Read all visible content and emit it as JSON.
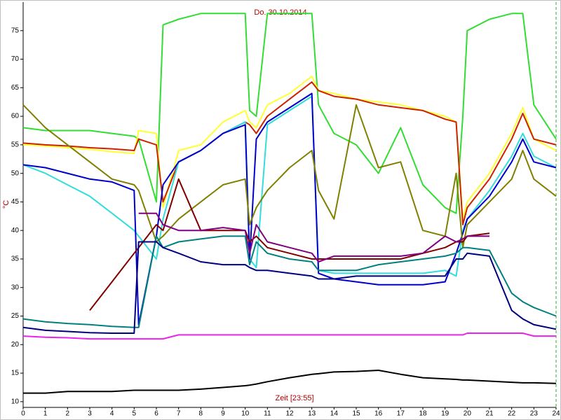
{
  "chart_data": {
    "type": "line",
    "title": "Do. 30.10.2014",
    "x_label": "Zeit [23:55]",
    "y_label": "°C",
    "x": [
      0,
      1,
      2,
      3,
      4,
      5,
      5.2,
      6,
      6.3,
      7,
      8,
      9,
      10,
      10.2,
      10.5,
      11,
      12,
      13,
      13.3,
      14,
      15,
      16,
      17,
      18,
      19,
      19.5,
      19.8,
      20,
      21,
      22,
      22.5,
      23,
      24
    ],
    "xlim": [
      0,
      24
    ],
    "xticks": [
      0,
      1,
      2,
      3,
      4,
      5,
      6,
      7,
      8,
      9,
      10,
      11,
      12,
      13,
      14,
      15,
      16,
      17,
      18,
      19,
      20,
      21,
      22,
      23,
      24
    ],
    "ylim": [
      9,
      80
    ],
    "yticks": [
      10,
      15,
      20,
      25,
      30,
      35,
      40,
      45,
      50,
      55,
      60,
      65,
      70,
      75
    ],
    "grid": false,
    "series": [
      {
        "color": "#33dd33",
        "values": [
          58,
          57.5,
          57.5,
          57.5,
          57,
          56.5,
          56,
          45,
          76,
          77,
          78,
          78,
          78,
          61,
          60,
          78,
          78,
          78,
          62,
          57,
          55,
          50,
          58,
          48,
          44,
          43,
          60,
          75,
          77,
          78,
          78,
          62,
          56
        ]
      },
      {
        "color": "#ffff33",
        "values": [
          55,
          54.8,
          54.5,
          54.2,
          53.8,
          53.5,
          57.5,
          57,
          44,
          54,
          55,
          59,
          61,
          59,
          58,
          62,
          64,
          67,
          64.5,
          64,
          63,
          62.5,
          62,
          61,
          60,
          59,
          42,
          45,
          50,
          57,
          61.5,
          56,
          54
        ]
      },
      {
        "color": "#cc2200",
        "values": [
          55.3,
          55,
          54.8,
          54.5,
          54.3,
          54,
          56,
          55,
          45,
          52,
          54,
          57,
          59,
          58.5,
          57,
          60,
          63,
          66,
          64.5,
          63.5,
          63,
          62,
          61.5,
          61,
          59.5,
          59,
          41,
          44,
          49,
          56,
          60.5,
          56,
          55
        ]
      },
      {
        "color": "#33dddd",
        "values": [
          51.5,
          50,
          48,
          46,
          43,
          40,
          39,
          35,
          42,
          52,
          54,
          57,
          59,
          35,
          33.5,
          58.5,
          61,
          63.5,
          33,
          32.5,
          32.5,
          32.5,
          32.5,
          32.5,
          33,
          32,
          40,
          42,
          47,
          53,
          57,
          53,
          51
        ]
      },
      {
        "color": "#0000cc",
        "values": [
          51.5,
          51,
          50,
          49,
          48.5,
          47,
          23.5,
          39,
          48,
          52,
          54,
          57,
          58.5,
          35,
          56,
          59,
          61.5,
          64,
          32.5,
          31.5,
          31,
          30.5,
          30.5,
          30.5,
          31,
          36,
          39.5,
          42,
          46,
          52,
          56,
          52,
          51
        ]
      },
      {
        "color": "#808000",
        "values": [
          62,
          58,
          55,
          52,
          49,
          48,
          47,
          38,
          39,
          42,
          45,
          48,
          49,
          41,
          44,
          47,
          51,
          54,
          47,
          42,
          62,
          51,
          52,
          40,
          39,
          50,
          37,
          41,
          45,
          49,
          54,
          49,
          46
        ]
      },
      {
        "color": "#800000",
        "values": [
          null,
          null,
          null,
          26,
          31,
          36,
          37,
          41,
          40,
          49,
          40,
          40,
          40,
          38,
          39,
          37,
          36,
          35,
          35,
          35,
          35,
          35,
          35,
          36,
          37,
          38,
          38,
          39,
          39.5,
          null,
          null,
          null,
          null
        ]
      },
      {
        "color": "#800080",
        "values": [
          null,
          null,
          null,
          null,
          null,
          null,
          43,
          43,
          41,
          40,
          40,
          40.5,
          40,
          36,
          41,
          38,
          37,
          36,
          34.5,
          35.5,
          35.5,
          35.5,
          35.5,
          36,
          39,
          38,
          38.5,
          39,
          39,
          null,
          null,
          null,
          null
        ]
      },
      {
        "color": "#008080",
        "values": [
          24.5,
          24,
          23.7,
          23.5,
          23.2,
          23,
          23,
          39,
          37,
          38,
          38.5,
          39,
          39,
          34,
          38,
          36,
          35,
          34.5,
          33,
          33,
          33,
          34,
          34.5,
          35,
          35.5,
          36,
          37,
          37,
          36.5,
          29,
          27.5,
          26.5,
          25
        ]
      },
      {
        "color": "#000080",
        "values": [
          23,
          22.5,
          22.3,
          22.1,
          22,
          22,
          38,
          38,
          37,
          36,
          34.5,
          34,
          34,
          33.5,
          33,
          33,
          32.5,
          32,
          31.5,
          31.5,
          32,
          32,
          32,
          32,
          32,
          35,
          35,
          36,
          35.5,
          26,
          24.5,
          23.5,
          22.7
        ]
      },
      {
        "color": "#ee22ee",
        "values": [
          21.5,
          21.3,
          21.2,
          21,
          21,
          21,
          21,
          21,
          21,
          21.7,
          21.7,
          21.7,
          21.7,
          21.7,
          21.7,
          21.7,
          21.7,
          21.7,
          21.7,
          21.7,
          21.7,
          21.7,
          21.7,
          21.7,
          21.7,
          21.7,
          21.7,
          22,
          22,
          22,
          22,
          21.5,
          21.5
        ]
      },
      {
        "color": "#000000",
        "values": [
          11.5,
          11.5,
          11.8,
          11.8,
          11.8,
          12,
          12,
          12,
          12,
          12,
          12.2,
          12.5,
          12.8,
          12.9,
          13.1,
          13.5,
          14.2,
          14.8,
          14.9,
          15.2,
          15.3,
          15.5,
          14.8,
          14.2,
          14,
          13.9,
          13.8,
          13.8,
          13.6,
          13.4,
          13.3,
          13.3,
          13.2
        ]
      }
    ]
  }
}
